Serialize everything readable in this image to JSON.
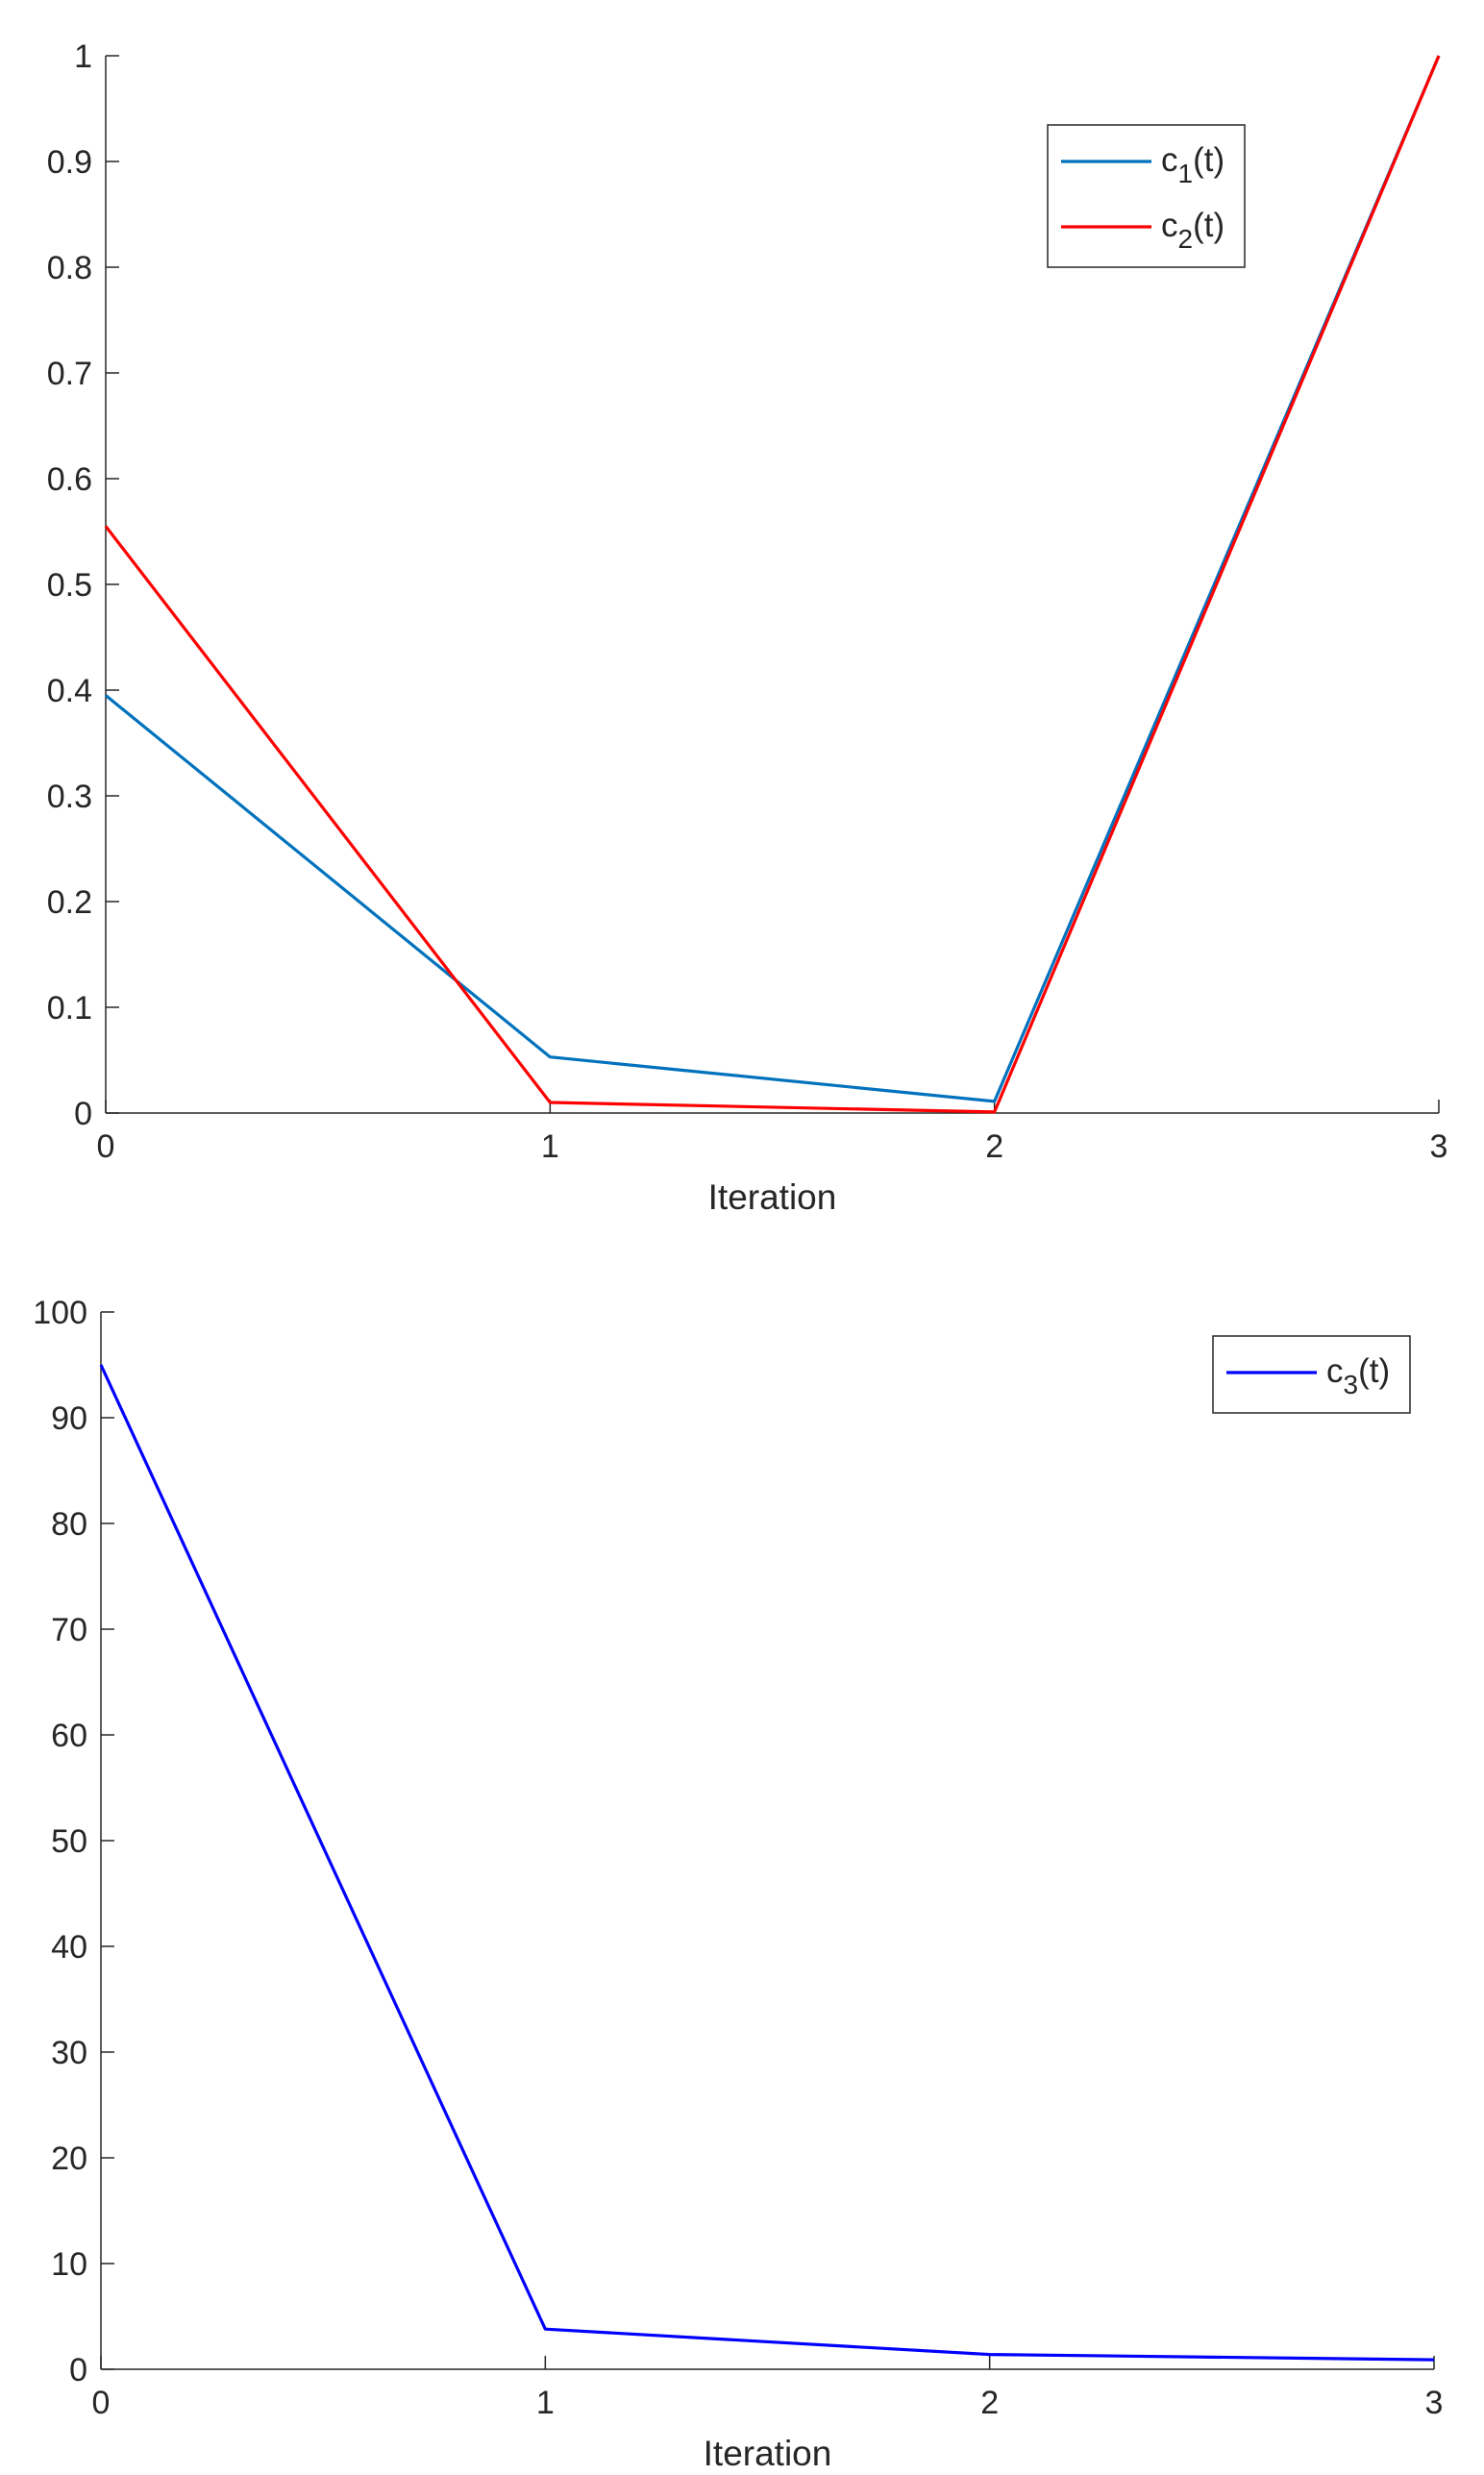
{
  "chart_data": [
    {
      "type": "line",
      "title": "",
      "xlabel": "Iteration",
      "ylabel": "",
      "xlim": [
        0,
        3
      ],
      "ylim": [
        0,
        1
      ],
      "xticks": [
        "0",
        "1",
        "2",
        "3"
      ],
      "yticks": [
        "0",
        "0.1",
        "0.2",
        "0.3",
        "0.4",
        "0.5",
        "0.6",
        "0.7",
        "0.8",
        "0.9",
        "1"
      ],
      "legend_position": "top-right",
      "grid": false,
      "x": [
        0,
        1,
        2,
        3
      ],
      "series": [
        {
          "name": "c",
          "subscript": "1",
          "suffix": "(t)",
          "color": "#0072BD",
          "values": [
            0.395,
            0.053,
            0.011,
            1.0
          ]
        },
        {
          "name": "c",
          "subscript": "2",
          "suffix": "(t)",
          "color": "#FF0000",
          "values": [
            0.555,
            0.01,
            0.001,
            1.0
          ]
        }
      ]
    },
    {
      "type": "line",
      "title": "",
      "xlabel": "Iteration",
      "ylabel": "",
      "xlim": [
        0,
        3
      ],
      "ylim": [
        0,
        100
      ],
      "xticks": [
        "0",
        "1",
        "2",
        "3"
      ],
      "yticks": [
        "0",
        "10",
        "20",
        "30",
        "40",
        "50",
        "60",
        "70",
        "80",
        "90",
        "100"
      ],
      "legend_position": "top-right",
      "grid": false,
      "x": [
        0,
        1,
        2,
        3
      ],
      "series": [
        {
          "name": "c",
          "subscript": "3",
          "suffix": "(t)",
          "color": "#0000FF",
          "values": [
            95,
            3.8,
            1.4,
            0.9
          ]
        }
      ]
    }
  ]
}
